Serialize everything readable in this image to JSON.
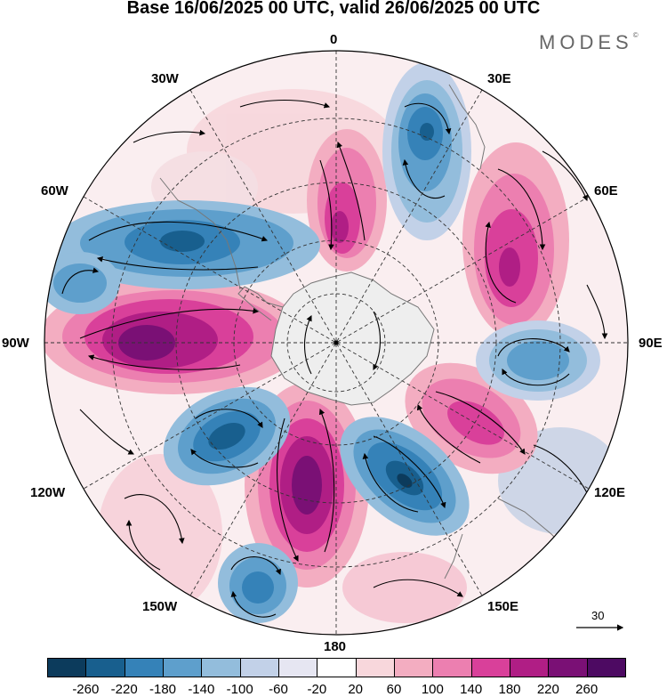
{
  "header": {
    "title": "Base 16/06/2025 00 UTC, valid 26/06/2025 00 UTC",
    "brand": "MODES",
    "brand_mark": "©"
  },
  "map": {
    "projection": "polar stereographic (south pole)",
    "longitude_labels": {
      "n": "0",
      "nne": "30E",
      "ene": "60E",
      "e": "90E",
      "ese": "120E",
      "sse": "150E",
      "s": "180",
      "ssw": "150W",
      "wsw": "120W",
      "w": "90W",
      "wnw": "60W",
      "nnw": "30W"
    },
    "reference_vector_label": "30"
  },
  "legend": {
    "ticks": [
      "-260",
      "-220",
      "-180",
      "-140",
      "-100",
      "-60",
      "-20",
      "20",
      "60",
      "100",
      "140",
      "180",
      "220",
      "260"
    ],
    "colors": [
      "#0c3b5c",
      "#185f8e",
      "#3582b8",
      "#5e9fcc",
      "#93bddc",
      "#c2d1e8",
      "#e6e6f2",
      "#ffffff",
      "#f8d7dc",
      "#f3adc1",
      "#ec7fb0",
      "#d9409a",
      "#b01e85",
      "#7a1075",
      "#4d0a62"
    ]
  },
  "colors": {
    "land": "#eeeeee",
    "coast": "#777777",
    "grid": "#333333"
  }
}
